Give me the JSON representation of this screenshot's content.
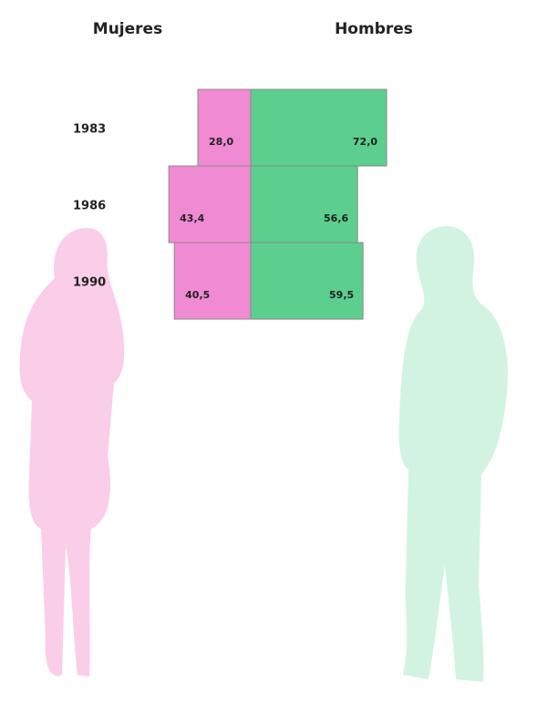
{
  "chart_data": {
    "type": "diverging-bar",
    "categories": [
      "1983",
      "1986",
      "1990"
    ],
    "series": [
      {
        "name": "Mujeres",
        "color": "#f08ad2",
        "values": [
          28.0,
          43.4,
          40.5
        ],
        "value_labels": [
          "28,0",
          "43,4",
          "40,5"
        ]
      },
      {
        "name": "Hombres",
        "color": "#5ccf8e",
        "values": [
          72.0,
          56.6,
          59.5
        ],
        "value_labels": [
          "72,0",
          "56,6",
          "59,5"
        ]
      }
    ]
  }
}
